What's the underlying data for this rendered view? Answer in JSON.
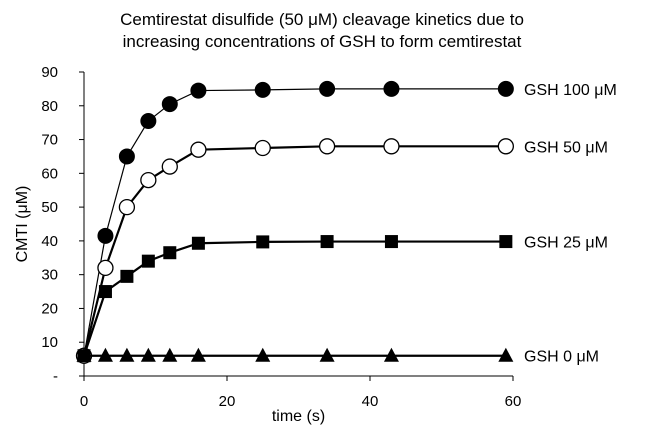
{
  "chart_data": {
    "type": "line",
    "title_lines": [
      "Cemtirestat disulfide (50 μM) cleavage kinetics due to",
      "increasing concentrations of GSH to form cemtirestat"
    ],
    "xlabel": "time (s)",
    "ylabel": "CMTI (μM)",
    "xlim": [
      0,
      60
    ],
    "ylim": [
      0,
      90
    ],
    "x_ticks": [
      0,
      20,
      40,
      60
    ],
    "y_ticks": [
      0,
      10,
      20,
      30,
      40,
      50,
      60,
      70,
      80,
      90
    ],
    "y_tick_labels": [
      "-",
      "10",
      "20",
      "30",
      "40",
      "50",
      "60",
      "70",
      "80",
      "90"
    ],
    "x_tick_labels": [
      "0",
      "20",
      "40",
      "60"
    ],
    "grid": false,
    "series": [
      {
        "name": "GSH 100 μM",
        "marker": "filled-circle",
        "x": [
          0,
          3,
          6,
          9,
          12,
          16,
          25,
          34,
          43,
          59
        ],
        "y": [
          6,
          41.5,
          65,
          75.5,
          80.5,
          84.5,
          84.7,
          85,
          85,
          85
        ]
      },
      {
        "name": "GSH 50 μM",
        "marker": "open-circle",
        "x": [
          0,
          3,
          6,
          9,
          12,
          16,
          25,
          34,
          43,
          59
        ],
        "y": [
          6,
          32,
          50,
          58,
          62,
          67,
          67.5,
          68,
          68,
          68
        ]
      },
      {
        "name": "GSH 25 μM",
        "marker": "filled-square",
        "x": [
          0,
          3,
          6,
          9,
          12,
          16,
          25,
          34,
          43,
          59
        ],
        "y": [
          6,
          25,
          29.5,
          34,
          36.5,
          39.3,
          39.7,
          39.8,
          39.8,
          39.8
        ]
      },
      {
        "name": "GSH 0 μM",
        "marker": "filled-triangle",
        "x": [
          0,
          3,
          6,
          9,
          12,
          16,
          25,
          34,
          43,
          59
        ],
        "y": [
          6,
          6,
          6,
          6,
          6,
          6,
          6,
          6,
          6,
          6
        ]
      }
    ]
  }
}
